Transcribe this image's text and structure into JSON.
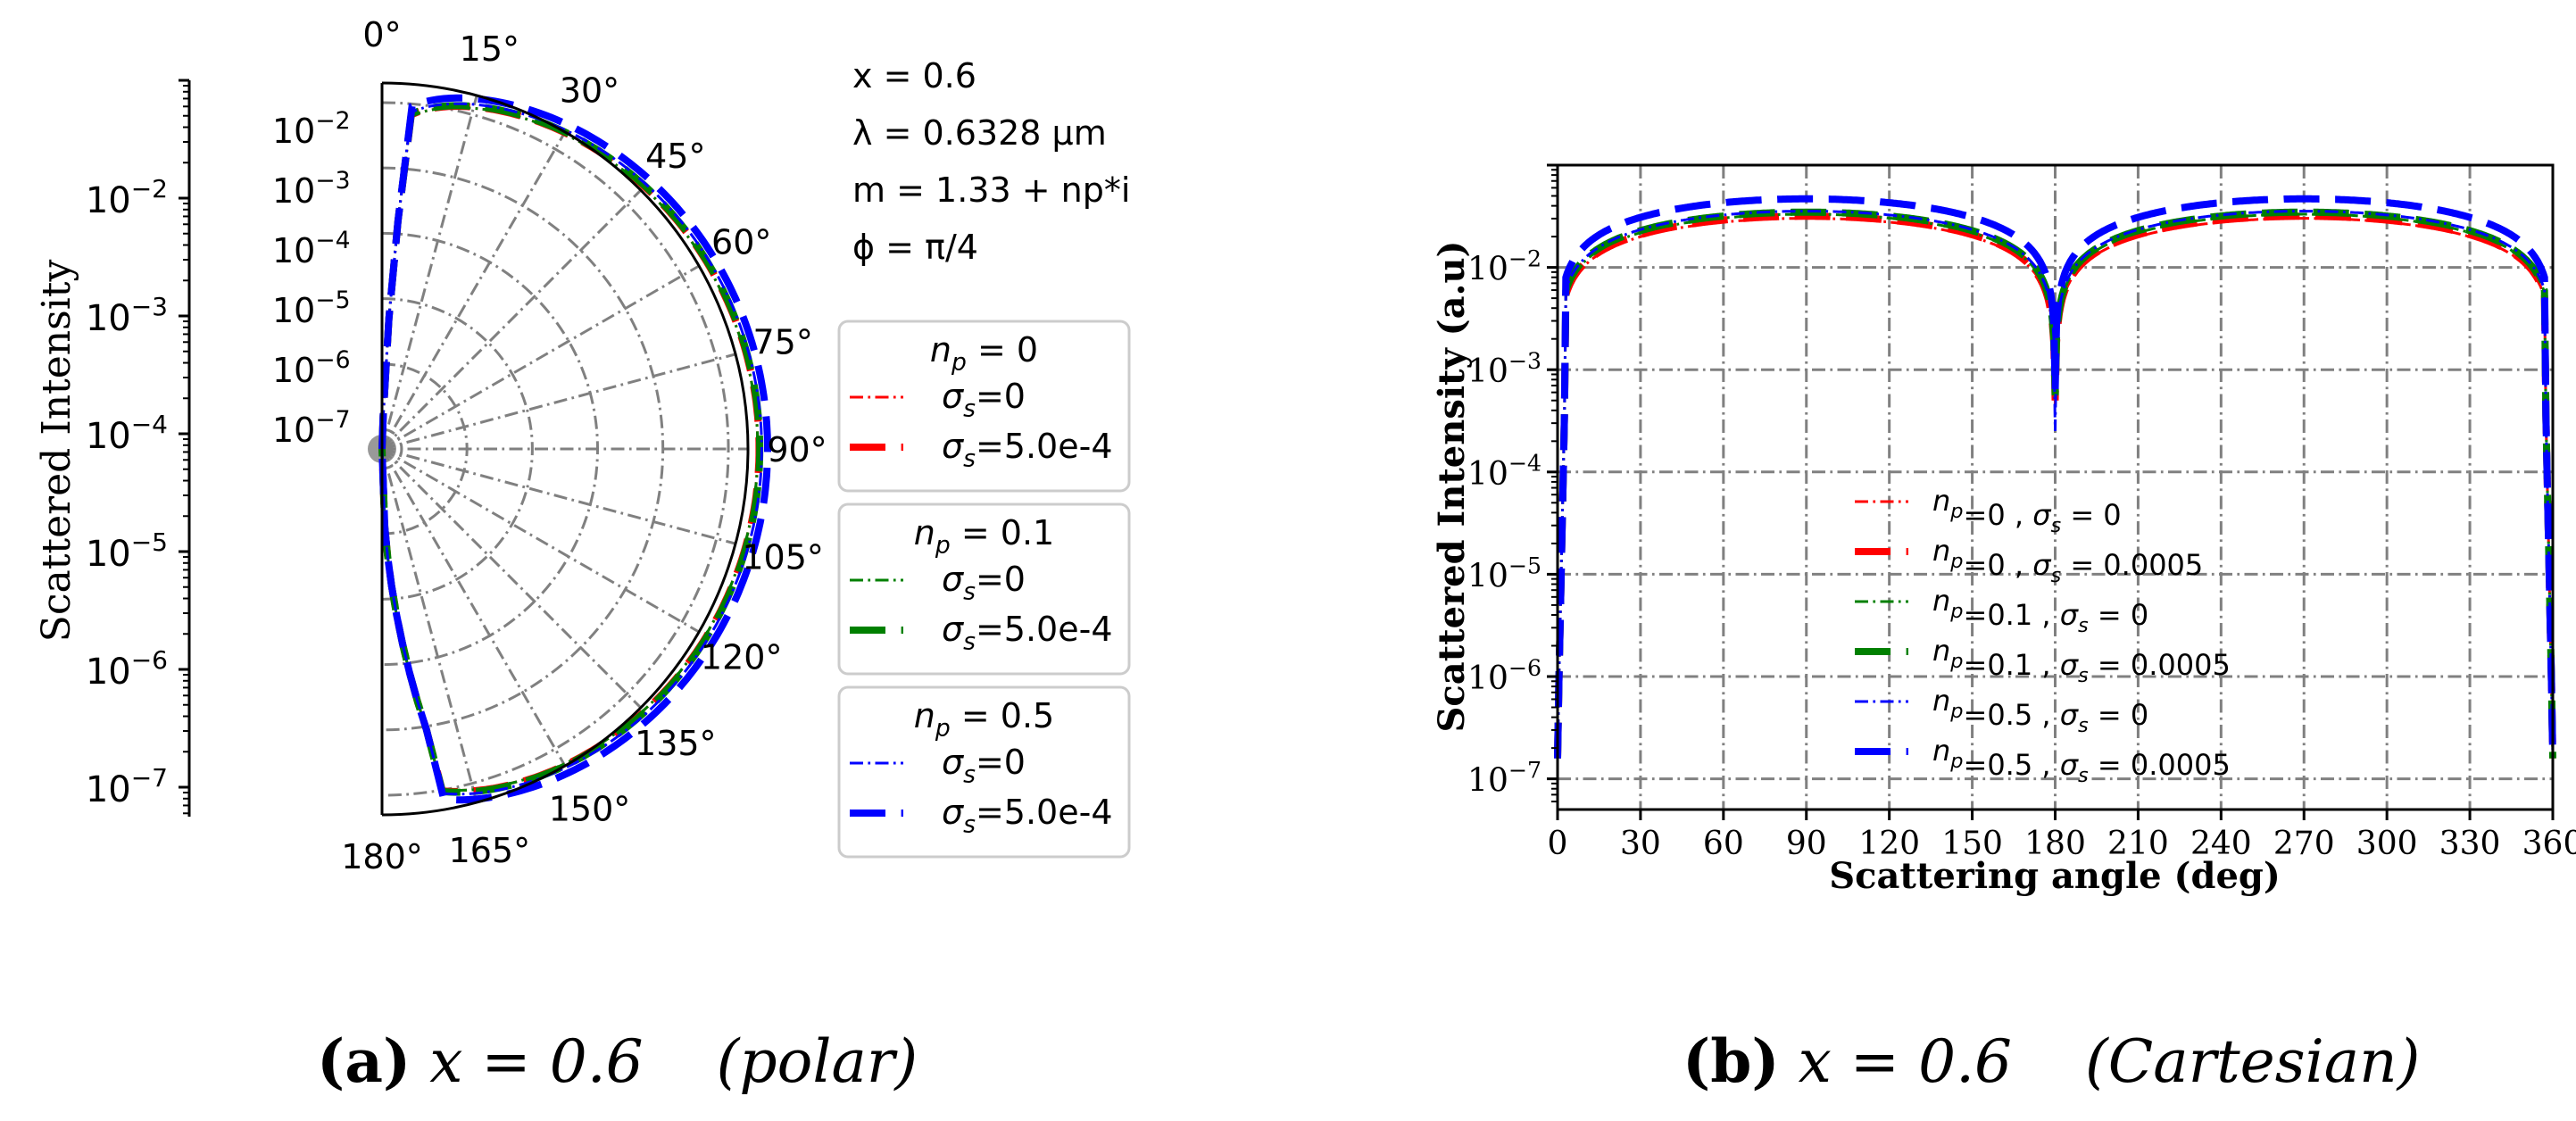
{
  "chart_data": [
    {
      "type": "polar",
      "ylabel": "Scattered  Intensity",
      "angle_ticks": [
        "0°",
        "15°",
        "30°",
        "45°",
        "60°",
        "75°",
        "90°",
        "105°",
        "120°",
        "135°",
        "150°",
        "165°",
        "180°"
      ],
      "radial_ticks": [
        "10−2",
        "10−3",
        "10−4",
        "10−5",
        "10−6",
        "10−7"
      ],
      "left_axis_ticks": [
        "10−2",
        "10−3",
        "10−4",
        "10−5",
        "10−6",
        "10−7"
      ],
      "params": [
        "x = 0.6",
        "λ = 0.6328 μm",
        "m = 1.33 + np*i",
        "ϕ = π/4"
      ],
      "legend_groups": [
        {
          "title": "np = 0",
          "color": "#ff0000",
          "entries": [
            "σs=0",
            "σs=5.0e-4"
          ]
        },
        {
          "title": "np = 0.1",
          "color": "#008000",
          "entries": [
            "σs=0",
            "σs=5.0e-4"
          ]
        },
        {
          "title": "np = 0.5",
          "color": "#0000ff",
          "entries": [
            "σs=0",
            "σs=5.0e-4"
          ]
        }
      ],
      "series": [
        {
          "name": "np=0, σs=0",
          "color": "#ff0000",
          "style": "dashdot",
          "peak_log10": -1.55
        },
        {
          "name": "np=0, σs=5.0e-4",
          "color": "#ff0000",
          "style": "dashed",
          "peak_log10": -1.53
        },
        {
          "name": "np=0.1, σs=0",
          "color": "#008000",
          "style": "dashdot",
          "peak_log10": -1.55
        },
        {
          "name": "np=0.1, σs=5.0e-4",
          "color": "#008000",
          "style": "dashed",
          "peak_log10": -1.52
        },
        {
          "name": "np=0.5, σs=0",
          "color": "#0000ff",
          "style": "dashdot",
          "peak_log10": -1.49
        },
        {
          "name": "np=0.5, σs=5.0e-4",
          "color": "#0000ff",
          "style": "dashed",
          "peak_log10": -1.4
        }
      ],
      "rlim_log10": [
        -7.3,
        -1.7
      ]
    },
    {
      "type": "line",
      "xlabel": "Scattering angle (deg)",
      "ylabel": "Scattered Intensity (a.u)",
      "xlim": [
        0,
        360
      ],
      "ylim_log10": [
        -7.3,
        -1.0
      ],
      "x_ticks": [
        "0",
        "30",
        "60",
        "90",
        "120",
        "150",
        "180",
        "210",
        "240",
        "270",
        "300",
        "330",
        "360"
      ],
      "y_ticks": [
        "10−2",
        "10−3",
        "10−4",
        "10−5",
        "10−6",
        "10−7"
      ],
      "legend": [
        {
          "label": "np=0 , σs = 0",
          "color": "#ff0000",
          "style": "dashdot"
        },
        {
          "label": "np=0 , σs = 0.0005",
          "color": "#ff0000",
          "style": "dashed"
        },
        {
          "label": "np=0.1 , σs = 0",
          "color": "#008000",
          "style": "dashdot"
        },
        {
          "label": "np=0.1 , σs = 0.0005",
          "color": "#008000",
          "style": "dashed"
        },
        {
          "label": "np=0.5 , σs = 0",
          "color": "#0000ff",
          "style": "dashdot"
        },
        {
          "label": "np=0.5 , σs = 0.0005",
          "color": "#0000ff",
          "style": "dashed"
        }
      ],
      "series": [
        {
          "name": "np=0, σs=0",
          "color": "#ff0000",
          "style": "dashdot",
          "peak_log10": -1.52,
          "dip_log10": -3.35
        },
        {
          "name": "np=0, σs=0.0005",
          "color": "#ff0000",
          "style": "dashed",
          "peak_log10": -1.5,
          "dip_log10": -3.3
        },
        {
          "name": "np=0.1, σs=0",
          "color": "#008000",
          "style": "dashdot",
          "peak_log10": -1.48,
          "dip_log10": -3.3
        },
        {
          "name": "np=0.1, σs=0.0005",
          "color": "#008000",
          "style": "dashed",
          "peak_log10": -1.46,
          "dip_log10": -3.25
        },
        {
          "name": "np=0.5, σs=0",
          "color": "#0000ff",
          "style": "dashdot",
          "peak_log10": -1.45,
          "dip_log10": -3.6
        },
        {
          "name": "np=0.5, σs=0.0005",
          "color": "#0000ff",
          "style": "dashed",
          "peak_log10": -1.33,
          "dip_log10": -3.2
        }
      ]
    }
  ],
  "captions": [
    {
      "label": "(a)",
      "math": "x = 0.6",
      "mode": "(polar)"
    },
    {
      "label": "(b)",
      "math": "x = 0.6",
      "mode": "(Cartesian)"
    }
  ]
}
